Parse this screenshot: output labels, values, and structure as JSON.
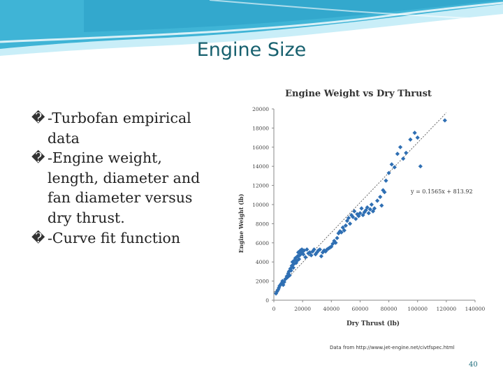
{
  "slide": {
    "title": "Engine Size",
    "bullets": [
      "-Turbofan empirical data",
      "-Engine weight, length, diameter and fan diameter versus dry thrust.",
      "-Curve fit function"
    ],
    "bullet_glyph": "�",
    "source": "Data from http://www.jet-engine.net/civtfspec.html",
    "page_number": "40"
  },
  "colors": {
    "title": "#17606e",
    "marker": "#2f6fb3",
    "trendline": "#555555",
    "wave_dark": "#3fb4d6",
    "wave_light": "#c9eef8"
  },
  "chart_data": {
    "type": "scatter",
    "title": "Engine Weight vs Dry Thrust",
    "xlabel": "Dry Thrust (lb)",
    "ylabel": "Engine Weight (lb)",
    "xlim": [
      0,
      140000
    ],
    "ylim": [
      0,
      20000
    ],
    "xticks": [
      0,
      20000,
      40000,
      60000,
      80000,
      100000,
      120000,
      140000
    ],
    "yticks": [
      0,
      2000,
      4000,
      6000,
      8000,
      10000,
      12000,
      14000,
      16000,
      18000,
      20000
    ],
    "xtick_labels": [
      "0",
      "20000",
      "40000",
      "60000",
      "80000",
      "100000",
      "120000",
      "140000"
    ],
    "ytick_labels": [
      "0",
      "2000",
      "4000",
      "6000",
      "8000",
      "10000",
      "12000",
      "14000",
      "16000",
      "18000",
      "20000"
    ],
    "trendline": {
      "slope": 0.1565,
      "intercept": 813.92,
      "x_range": [
        0,
        120000
      ],
      "equation": "y = 0.1565x + 813.92"
    },
    "grid": false,
    "legend": "none",
    "points": [
      [
        1500,
        700
      ],
      [
        2200,
        900
      ],
      [
        3000,
        1100
      ],
      [
        3500,
        1300
      ],
      [
        4000,
        1500
      ],
      [
        4800,
        1650
      ],
      [
        5500,
        1800
      ],
      [
        6000,
        2000
      ],
      [
        6500,
        1600
      ],
      [
        7200,
        1900
      ],
      [
        8000,
        2200
      ],
      [
        9000,
        2500
      ],
      [
        9500,
        2400
      ],
      [
        10000,
        2800
      ],
      [
        10500,
        3000
      ],
      [
        11000,
        2600
      ],
      [
        11500,
        3300
      ],
      [
        12000,
        3100
      ],
      [
        12500,
        3600
      ],
      [
        13000,
        4000
      ],
      [
        13500,
        3400
      ],
      [
        14000,
        3800
      ],
      [
        14500,
        4200
      ],
      [
        15000,
        4400
      ],
      [
        15500,
        3900
      ],
      [
        16000,
        4100
      ],
      [
        16500,
        4600
      ],
      [
        17000,
        5000
      ],
      [
        17500,
        4300
      ],
      [
        18000,
        4700
      ],
      [
        18500,
        5200
      ],
      [
        19000,
        4900
      ],
      [
        19500,
        5300
      ],
      [
        20000,
        5100
      ],
      [
        20500,
        4800
      ],
      [
        21000,
        5200
      ],
      [
        22000,
        4500
      ],
      [
        23000,
        5300
      ],
      [
        24000,
        4900
      ],
      [
        25000,
        5000
      ],
      [
        26000,
        4700
      ],
      [
        27000,
        5100
      ],
      [
        28000,
        5300
      ],
      [
        29000,
        4800
      ],
      [
        30000,
        5000
      ],
      [
        31000,
        5200
      ],
      [
        32000,
        5300
      ],
      [
        33000,
        4600
      ],
      [
        34000,
        5000
      ],
      [
        35000,
        5200
      ],
      [
        36000,
        5100
      ],
      [
        37000,
        5300
      ],
      [
        38000,
        5400
      ],
      [
        39000,
        5500
      ],
      [
        40000,
        5600
      ],
      [
        41000,
        5900
      ],
      [
        42000,
        6200
      ],
      [
        43000,
        6000
      ],
      [
        44000,
        6500
      ],
      [
        45000,
        7000
      ],
      [
        46000,
        7200
      ],
      [
        47000,
        7100
      ],
      [
        48000,
        7600
      ],
      [
        49000,
        7300
      ],
      [
        50000,
        7800
      ],
      [
        51000,
        8300
      ],
      [
        52000,
        8600
      ],
      [
        53000,
        8000
      ],
      [
        54000,
        8900
      ],
      [
        55000,
        8700
      ],
      [
        56000,
        9300
      ],
      [
        57000,
        8500
      ],
      [
        58000,
        9000
      ],
      [
        59000,
        8800
      ],
      [
        60000,
        9100
      ],
      [
        61000,
        9600
      ],
      [
        62000,
        8900
      ],
      [
        63000,
        9200
      ],
      [
        64000,
        9400
      ],
      [
        65000,
        9700
      ],
      [
        66000,
        9100
      ],
      [
        67000,
        9500
      ],
      [
        68000,
        10000
      ],
      [
        69000,
        9300
      ],
      [
        70000,
        9600
      ],
      [
        72000,
        10400
      ],
      [
        74000,
        10800
      ],
      [
        75000,
        9900
      ],
      [
        76000,
        11500
      ],
      [
        77000,
        11300
      ],
      [
        78000,
        12500
      ],
      [
        80000,
        13300
      ],
      [
        82000,
        14200
      ],
      [
        84000,
        13900
      ],
      [
        86000,
        15300
      ],
      [
        88000,
        16000
      ],
      [
        90000,
        14800
      ],
      [
        92000,
        15400
      ],
      [
        95000,
        16800
      ],
      [
        98000,
        17500
      ],
      [
        100000,
        17000
      ],
      [
        102000,
        14000
      ],
      [
        119000,
        18800
      ]
    ]
  }
}
